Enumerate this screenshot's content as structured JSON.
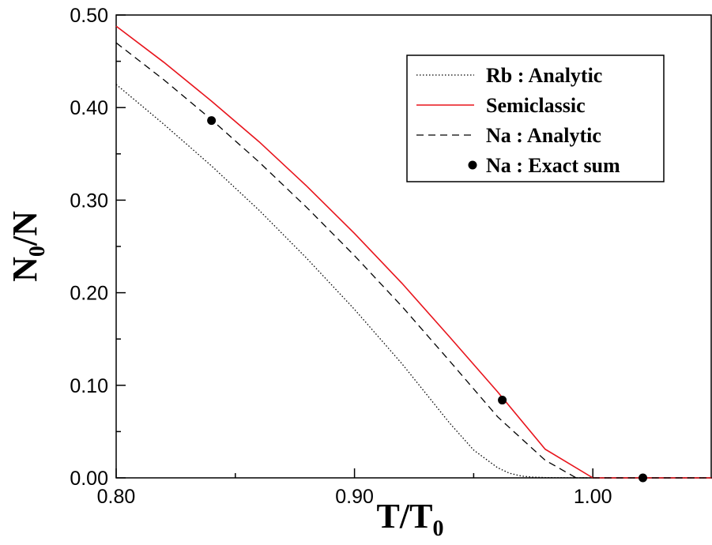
{
  "chart_data": {
    "type": "line",
    "xlabel": "T/T",
    "xlabel_sub": "0",
    "ylabel": "N",
    "ylabel_sub": "0",
    "ylabel_suffix": "/N",
    "xlim": [
      0.8,
      1.05
    ],
    "ylim": [
      0.0,
      0.5
    ],
    "xticks": [
      0.8,
      0.9,
      1.0
    ],
    "xtick_labels": [
      "0.80",
      "0.90",
      "1.00"
    ],
    "yticks": [
      0.0,
      0.1,
      0.2,
      0.3,
      0.4,
      0.5
    ],
    "ytick_labels": [
      "0.00",
      "0.10",
      "0.20",
      "0.30",
      "0.40",
      "0.50"
    ],
    "grid": false,
    "legend_position": "top-right",
    "series": [
      {
        "name": "Rb : Analytic",
        "style": "dotted",
        "color": "#000000",
        "x": [
          0.8,
          0.82,
          0.84,
          0.86,
          0.88,
          0.9,
          0.92,
          0.94,
          0.95,
          0.96,
          0.965,
          0.97,
          0.975,
          0.98,
          0.99,
          1.0,
          1.05
        ],
        "y": [
          0.425,
          0.382,
          0.337,
          0.289,
          0.237,
          0.182,
          0.123,
          0.059,
          0.03,
          0.011,
          0.005,
          0.002,
          0.0008,
          0.0003,
          0.0001,
          0.0,
          0.0
        ]
      },
      {
        "name": "Semiclassic",
        "style": "solid",
        "color": "#e8141c",
        "x": [
          0.8,
          0.82,
          0.84,
          0.86,
          0.88,
          0.9,
          0.92,
          0.94,
          0.96,
          0.98,
          1.0,
          1.05
        ],
        "y": [
          0.488,
          0.449,
          0.407,
          0.363,
          0.315,
          0.264,
          0.21,
          0.152,
          0.093,
          0.031,
          0.0,
          0.0
        ]
      },
      {
        "name": "Na : Analytic",
        "style": "dashed",
        "color": "#000000",
        "x": [
          0.8,
          0.82,
          0.84,
          0.86,
          0.88,
          0.9,
          0.92,
          0.94,
          0.96,
          0.98,
          0.993,
          1.05
        ],
        "y": [
          0.47,
          0.43,
          0.387,
          0.341,
          0.292,
          0.24,
          0.185,
          0.126,
          0.066,
          0.019,
          0.0,
          0.0
        ]
      },
      {
        "name": "Na : Exact sum",
        "style": "markers",
        "color": "#000000",
        "x": [
          0.84,
          0.962,
          1.021
        ],
        "y": [
          0.386,
          0.084,
          0.0
        ]
      }
    ]
  }
}
